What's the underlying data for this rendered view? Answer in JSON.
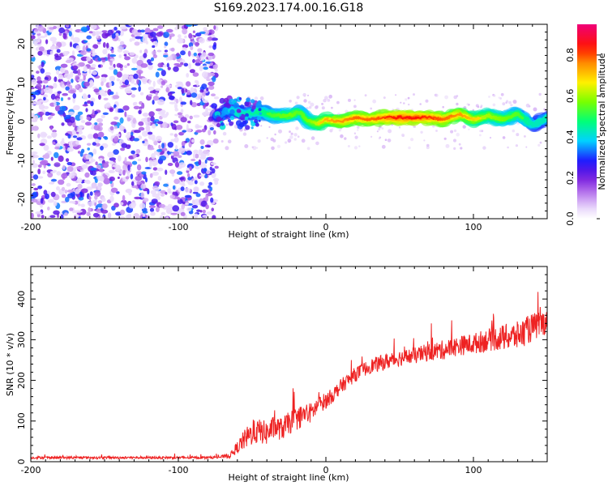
{
  "title": "S169.2023.174.00.16.G18",
  "colors": {
    "snr_line": "#ee2222",
    "frame": "#000000"
  },
  "chart_data": [
    {
      "type": "heatmap",
      "xlabel": "Height of straight line (km)",
      "ylabel": "Frequency (Hz)",
      "xlim": [
        -200,
        150
      ],
      "ylim": [
        -25,
        25
      ],
      "x_ticks": [
        -200,
        -100,
        0,
        100
      ],
      "x_tick_labels": [
        "-200",
        "-100",
        "0",
        "100"
      ],
      "y_ticks": [
        -20,
        -10,
        0,
        10,
        20
      ],
      "y_tick_labels": [
        "-20",
        "-10",
        "0",
        "10",
        "20"
      ],
      "colorbar": {
        "label": "Normalized spectral amplitude",
        "range": [
          0,
          0.95
        ],
        "ticks": [
          0,
          0.2,
          0.4,
          0.6,
          0.8
        ],
        "tick_labels": [
          "0.0",
          "0.2",
          "0.4",
          "0.6",
          "0.8"
        ],
        "colormap": "rainbow-white-to-magenta"
      },
      "noise_region": {
        "x": [
          -200,
          -74
        ],
        "frequency": [
          -25,
          25
        ],
        "amplitude": [
          0,
          0.35
        ]
      },
      "signal_ridge": {
        "x": [
          -74,
          -65,
          -55,
          -45,
          -35,
          -25,
          -18,
          -12,
          -5,
          0,
          10,
          20,
          30,
          40,
          50,
          60,
          70,
          80,
          90,
          100,
          110,
          120,
          130,
          140,
          150
        ],
        "frequency": [
          1.5,
          3.0,
          2.0,
          2.5,
          1.5,
          1.5,
          2.5,
          0,
          -0.5,
          0.5,
          0,
          1.0,
          0.5,
          1.0,
          1.0,
          1.0,
          1.0,
          0.5,
          2.0,
          0.5,
          1.5,
          0.5,
          2.0,
          -1.0,
          1.0
        ],
        "amplitude": [
          0.35,
          0.4,
          0.45,
          0.5,
          0.55,
          0.6,
          0.55,
          0.6,
          0.7,
          0.75,
          0.8,
          0.85,
          0.85,
          0.9,
          0.95,
          0.95,
          0.9,
          0.85,
          0.8,
          0.7,
          0.65,
          0.6,
          0.55,
          0.45,
          0.45
        ]
      }
    },
    {
      "type": "line",
      "xlabel": "Height of straight line (km)",
      "ylabel": "SNR (10 * v/v)",
      "xlim": [
        -200,
        150
      ],
      "ylim": [
        0,
        480
      ],
      "x_ticks": [
        -200,
        -100,
        0,
        100
      ],
      "x_tick_labels": [
        "-200",
        "-100",
        "0",
        "100"
      ],
      "y_ticks": [
        0,
        100,
        200,
        300,
        400
      ],
      "y_tick_labels": [
        "0",
        "100",
        "200",
        "300",
        "400"
      ],
      "series": [
        {
          "x": [
            -200,
            -170,
            -140,
            -110,
            -80,
            -70,
            -65,
            -60,
            -55,
            -50,
            -45,
            -40,
            -35,
            -30,
            -25,
            -20,
            -15,
            -10,
            -5,
            0,
            5,
            10,
            20,
            30,
            40,
            50,
            60,
            70,
            80,
            90,
            100,
            110,
            120,
            130,
            140,
            150
          ],
          "y": [
            10,
            10,
            10,
            10,
            10,
            12,
            15,
            35,
            55,
            70,
            75,
            70,
            85,
            80,
            95,
            105,
            115,
            120,
            140,
            150,
            165,
            185,
            215,
            235,
            245,
            255,
            260,
            270,
            275,
            285,
            290,
            300,
            305,
            310,
            330,
            345
          ],
          "noise_amplitude": [
            3,
            3,
            3,
            3,
            3,
            4,
            6,
            15,
            25,
            30,
            30,
            30,
            28,
            28,
            28,
            28,
            28,
            25,
            22,
            20,
            18,
            18,
            18,
            18,
            20,
            20,
            20,
            22,
            24,
            24,
            26,
            28,
            32,
            35,
            35,
            30
          ]
        }
      ]
    }
  ]
}
